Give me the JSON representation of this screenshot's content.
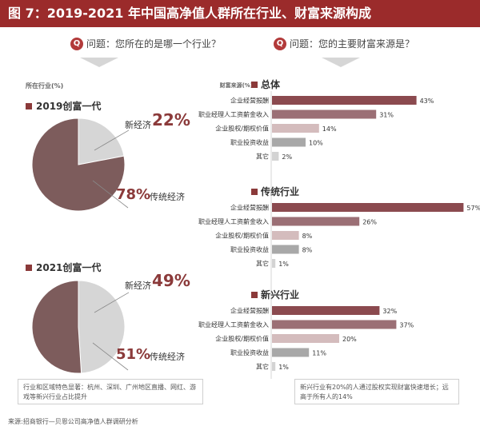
{
  "title": "图 7：2019-2021 年中国高净值人群所在行业、财富来源构成",
  "left": {
    "question": "问题：您所在的是哪一个行业？",
    "axis_label": "所在行业(%)",
    "note": "行业和区域特色显著：杭州、深圳、广州地区直播、网红、游戏等新兴行业占比提升"
  },
  "right": {
    "question": "问题：您的主要财富来源是？",
    "axis_label": "财富来源(%)",
    "note": "新兴行业有20%的人通过股权实现财富快速增长；远高于所有人的14%"
  },
  "source": "来源:招商银行—贝恩公司高净值人群调研分析",
  "colors": {
    "accent": "#9b2b2b",
    "pie_dark": "#7d5c5c",
    "pie_light": "#d6d6d6",
    "bar1": "#8b4a4f",
    "bar2": "#9b6f75",
    "bar3": "#d4bcbd",
    "bar4": "#a8a8a8",
    "bar5": "#d3d3d3"
  },
  "chart_data": [
    {
      "type": "pie",
      "title": "2019创富一代",
      "slices": [
        {
          "label": "新经济",
          "value": 22,
          "display": "22%"
        },
        {
          "label": "传统经济",
          "value": 78,
          "display": "78%"
        }
      ]
    },
    {
      "type": "pie",
      "title": "2021创富一代",
      "slices": [
        {
          "label": "新经济",
          "value": 49,
          "display": "49%"
        },
        {
          "label": "传统经济",
          "value": 51,
          "display": "51%"
        }
      ]
    },
    {
      "type": "bar",
      "title": "总体",
      "categories": [
        "企业经营报酬",
        "职业经理人工资薪金收入",
        "企业股权/期权价值",
        "职业投资收益",
        "其它"
      ],
      "values": [
        43,
        31,
        14,
        10,
        2
      ],
      "labels": [
        "43%",
        "31%",
        "14%",
        "10%",
        "2%"
      ]
    },
    {
      "type": "bar",
      "title": "传统行业",
      "categories": [
        "企业经营报酬",
        "职业经理人工资薪金收入",
        "企业股权/期权价值",
        "职业投资收益",
        "其它"
      ],
      "values": [
        57,
        26,
        8,
        8,
        1
      ],
      "labels": [
        "57%",
        "26%",
        "8%",
        "8%",
        "1%"
      ]
    },
    {
      "type": "bar",
      "title": "新兴行业",
      "categories": [
        "企业经营报酬",
        "职业经理人工资薪金收入",
        "企业股权/期权价值",
        "职业投资收益",
        "其它"
      ],
      "values": [
        32,
        37,
        20,
        11,
        1
      ],
      "labels": [
        "32%",
        "37%",
        "20%",
        "11%",
        "1%"
      ]
    }
  ]
}
